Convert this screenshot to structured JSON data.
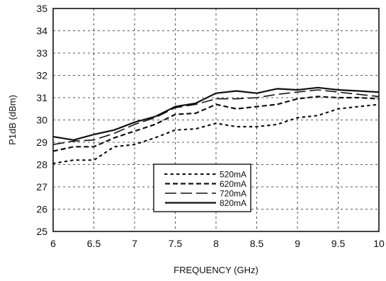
{
  "chart_data": {
    "type": "line",
    "xlabel": "FREQUENCY (GHz)",
    "ylabel": "P1dB (dBm)",
    "xlim": [
      6,
      10
    ],
    "ylim": [
      25,
      35
    ],
    "xticks": [
      "6",
      "6.5",
      "7",
      "7.5",
      "8",
      "8.5",
      "9",
      "9.5",
      "10"
    ],
    "yticks": [
      "25",
      "26",
      "27",
      "28",
      "29",
      "30",
      "31",
      "32",
      "33",
      "34",
      "35"
    ],
    "grid": true,
    "legend_position": "bottom-center",
    "series": [
      {
        "name": "520mA",
        "style": "dotted",
        "points": [
          [
            6,
            28.05
          ],
          [
            6.25,
            28.2
          ],
          [
            6.5,
            28.2
          ],
          [
            6.75,
            28.8
          ],
          [
            7,
            28.9
          ],
          [
            7.25,
            29.2
          ],
          [
            7.5,
            29.55
          ],
          [
            7.75,
            29.6
          ],
          [
            8,
            29.85
          ],
          [
            8.25,
            29.7
          ],
          [
            8.5,
            29.7
          ],
          [
            8.75,
            29.8
          ],
          [
            9,
            30.1
          ],
          [
            9.25,
            30.2
          ],
          [
            9.5,
            30.5
          ],
          [
            9.75,
            30.6
          ],
          [
            10,
            30.7
          ]
        ]
      },
      {
        "name": "620mA",
        "style": "dashed",
        "points": [
          [
            6,
            28.6
          ],
          [
            6.25,
            28.8
          ],
          [
            6.5,
            28.8
          ],
          [
            6.75,
            29.2
          ],
          [
            7,
            29.5
          ],
          [
            7.25,
            29.8
          ],
          [
            7.5,
            30.25
          ],
          [
            7.75,
            30.3
          ],
          [
            8,
            30.7
          ],
          [
            8.25,
            30.5
          ],
          [
            8.5,
            30.6
          ],
          [
            8.75,
            30.7
          ],
          [
            9,
            30.95
          ],
          [
            9.25,
            31.05
          ],
          [
            9.5,
            31.0
          ],
          [
            9.75,
            31.0
          ],
          [
            10,
            30.95
          ]
        ]
      },
      {
        "name": "720mA",
        "style": "long-dashed",
        "points": [
          [
            6,
            28.9
          ],
          [
            6.25,
            29.05
          ],
          [
            6.5,
            29.1
          ],
          [
            6.75,
            29.4
          ],
          [
            7,
            29.8
          ],
          [
            7.25,
            30.1
          ],
          [
            7.5,
            30.55
          ],
          [
            7.75,
            30.7
          ],
          [
            8,
            30.95
          ],
          [
            8.25,
            30.95
          ],
          [
            8.5,
            31.0
          ],
          [
            8.75,
            31.15
          ],
          [
            9,
            31.25
          ],
          [
            9.25,
            31.35
          ],
          [
            9.5,
            31.25
          ],
          [
            9.75,
            31.15
          ],
          [
            10,
            31.05
          ]
        ]
      },
      {
        "name": "820mA",
        "style": "solid",
        "points": [
          [
            6,
            29.25
          ],
          [
            6.25,
            29.1
          ],
          [
            6.5,
            29.35
          ],
          [
            6.75,
            29.55
          ],
          [
            7,
            29.9
          ],
          [
            7.25,
            30.15
          ],
          [
            7.5,
            30.6
          ],
          [
            7.75,
            30.75
          ],
          [
            8,
            31.2
          ],
          [
            8.25,
            31.3
          ],
          [
            8.5,
            31.2
          ],
          [
            8.75,
            31.4
          ],
          [
            9,
            31.35
          ],
          [
            9.25,
            31.45
          ],
          [
            9.5,
            31.35
          ],
          [
            9.75,
            31.3
          ],
          [
            10,
            31.25
          ]
        ]
      }
    ]
  }
}
